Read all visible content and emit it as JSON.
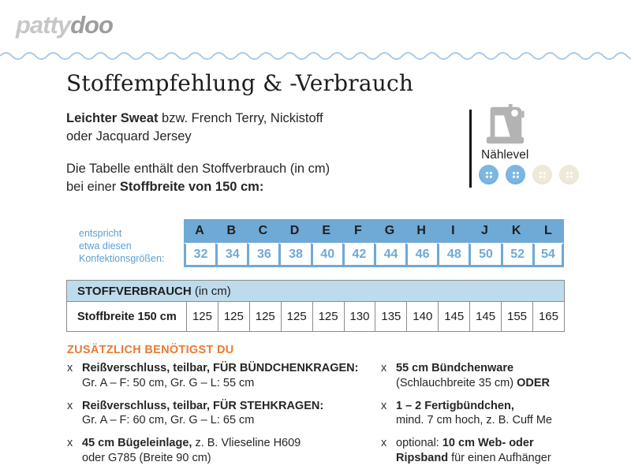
{
  "logo": {
    "part1": "patty",
    "part2": "doo"
  },
  "colors": {
    "table_header_blue": "#6fa9d6",
    "size_number_blue": "#6fa9d6",
    "caption_blue": "#5b9fd3",
    "consumption_header_blue": "#bedbee",
    "extras_orange": "#e87b35",
    "wave_blue": "#a9c9ec",
    "button_active_blue": "#6fade0",
    "button_inactive_beige": "#e8e2d2",
    "logo_gray_light": "#c7c7c7",
    "logo_gray_dark": "#9d9d9d"
  },
  "header": {
    "title": "Stoffempfehlung & -Verbrauch",
    "fabric_bold": "Leichter Sweat",
    "fabric_rest": " bzw. French Terry, Nickistoff",
    "fabric_line2": "oder Jacquard Jersey",
    "intro_line1": "Die Tabelle enthält den Stoffverbrauch (in cm)",
    "intro_line2_pre": "bei einer ",
    "intro_line2_bold": "Stoffbreite von 150 cm:"
  },
  "naehlevel": {
    "label": "Nählevel",
    "machine_icon": "sewing-machine-icon",
    "level_active": 2,
    "level_total": 4
  },
  "size_table": {
    "caption_line1": "entspricht",
    "caption_line2": "etwa diesen",
    "caption_line3": "Konfektionsgrößen:",
    "letters": [
      "A",
      "B",
      "C",
      "D",
      "E",
      "F",
      "G",
      "H",
      "I",
      "J",
      "K",
      "L"
    ],
    "sizes": [
      "32",
      "34",
      "36",
      "38",
      "40",
      "42",
      "44",
      "46",
      "48",
      "50",
      "52",
      "54"
    ]
  },
  "consumption_table": {
    "header_bold": "STOFFVERBRAUCH",
    "header_rest": " (in cm)",
    "row_label": "Stoffbreite 150 cm",
    "values": [
      "125",
      "125",
      "125",
      "125",
      "125",
      "130",
      "135",
      "140",
      "145",
      "145",
      "155",
      "165"
    ]
  },
  "extras": {
    "heading": "ZUSÄTZLICH BENÖTIGST DU",
    "left": [
      {
        "marker": "x",
        "l1_pre": "",
        "l1_bold": "Reißverschluss, teilbar, FÜR BÜNDCHENKRAGEN:",
        "l1_post": "",
        "l2_pre": "Gr. A – F: 50 cm, Gr. G – L: 55 cm",
        "l2_bold": "",
        "l2_post": ""
      },
      {
        "marker": "x",
        "l1_pre": "",
        "l1_bold": "Reißverschluss, teilbar, FÜR STEHKRAGEN:",
        "l1_post": "",
        "l2_pre": "Gr. A – F: 60 cm, Gr. G – L: 65 cm",
        "l2_bold": "",
        "l2_post": ""
      },
      {
        "marker": "x",
        "l1_pre": "",
        "l1_bold": "45 cm Bügeleinlage,",
        "l1_post": " z. B. Vlieseline H609",
        "l2_pre": "oder G785 (Breite 90 cm)",
        "l2_bold": "",
        "l2_post": ""
      }
    ],
    "right": [
      {
        "marker": "x",
        "l1_pre": "",
        "l1_bold": "55 cm Bündchenware",
        "l1_post": "",
        "l2_pre": "(Schlauchbreite 35 cm) ",
        "l2_bold": "ODER",
        "l2_post": ""
      },
      {
        "marker": "x",
        "l1_pre": "",
        "l1_bold": "1 – 2 Fertigbündchen,",
        "l1_post": "",
        "l2_pre": "mind. 7 cm hoch, z. B. Cuff Me",
        "l2_bold": "",
        "l2_post": ""
      },
      {
        "marker": "x",
        "l1_pre": "optional: ",
        "l1_bold": "10 cm Web- oder",
        "l1_post": "",
        "l2_pre": "",
        "l2_bold": "Ripsband",
        "l2_post": " für einen Aufhänger"
      }
    ]
  }
}
